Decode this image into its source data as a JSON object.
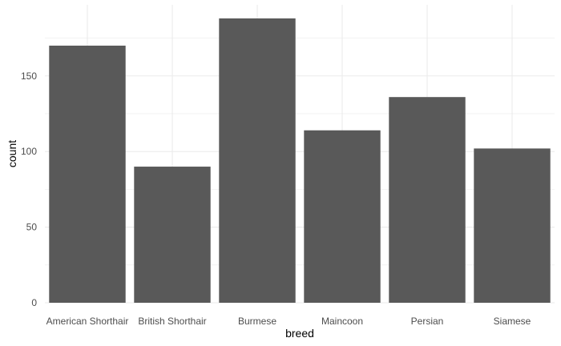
{
  "chart_data": {
    "type": "bar",
    "title": "",
    "xlabel": "breed",
    "ylabel": "count",
    "categories": [
      "American Shorthair",
      "British Shorthair",
      "Burmese",
      "Maincoon",
      "Persian",
      "Siamese"
    ],
    "values": [
      170,
      90,
      188,
      114,
      136,
      102
    ],
    "ylim": [
      0,
      197
    ],
    "yticks": [
      0,
      50,
      100,
      150
    ],
    "ytick_labels": [
      "0",
      "50",
      "100",
      "150"
    ],
    "grid": true,
    "legend": "none",
    "colors": {
      "bar": "#595959",
      "grid": "#ebebeb",
      "background": "#ffffff"
    }
  }
}
